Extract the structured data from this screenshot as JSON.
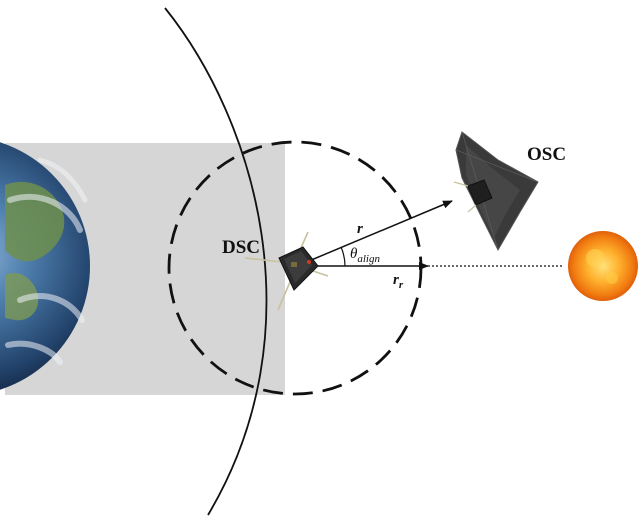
{
  "labels": {
    "deputy": "DSC",
    "observer": "OSC",
    "r_vector": "r",
    "r_r_main": "r",
    "r_r_sub": "r",
    "theta_main": "θ",
    "theta_sub": "align"
  }
}
